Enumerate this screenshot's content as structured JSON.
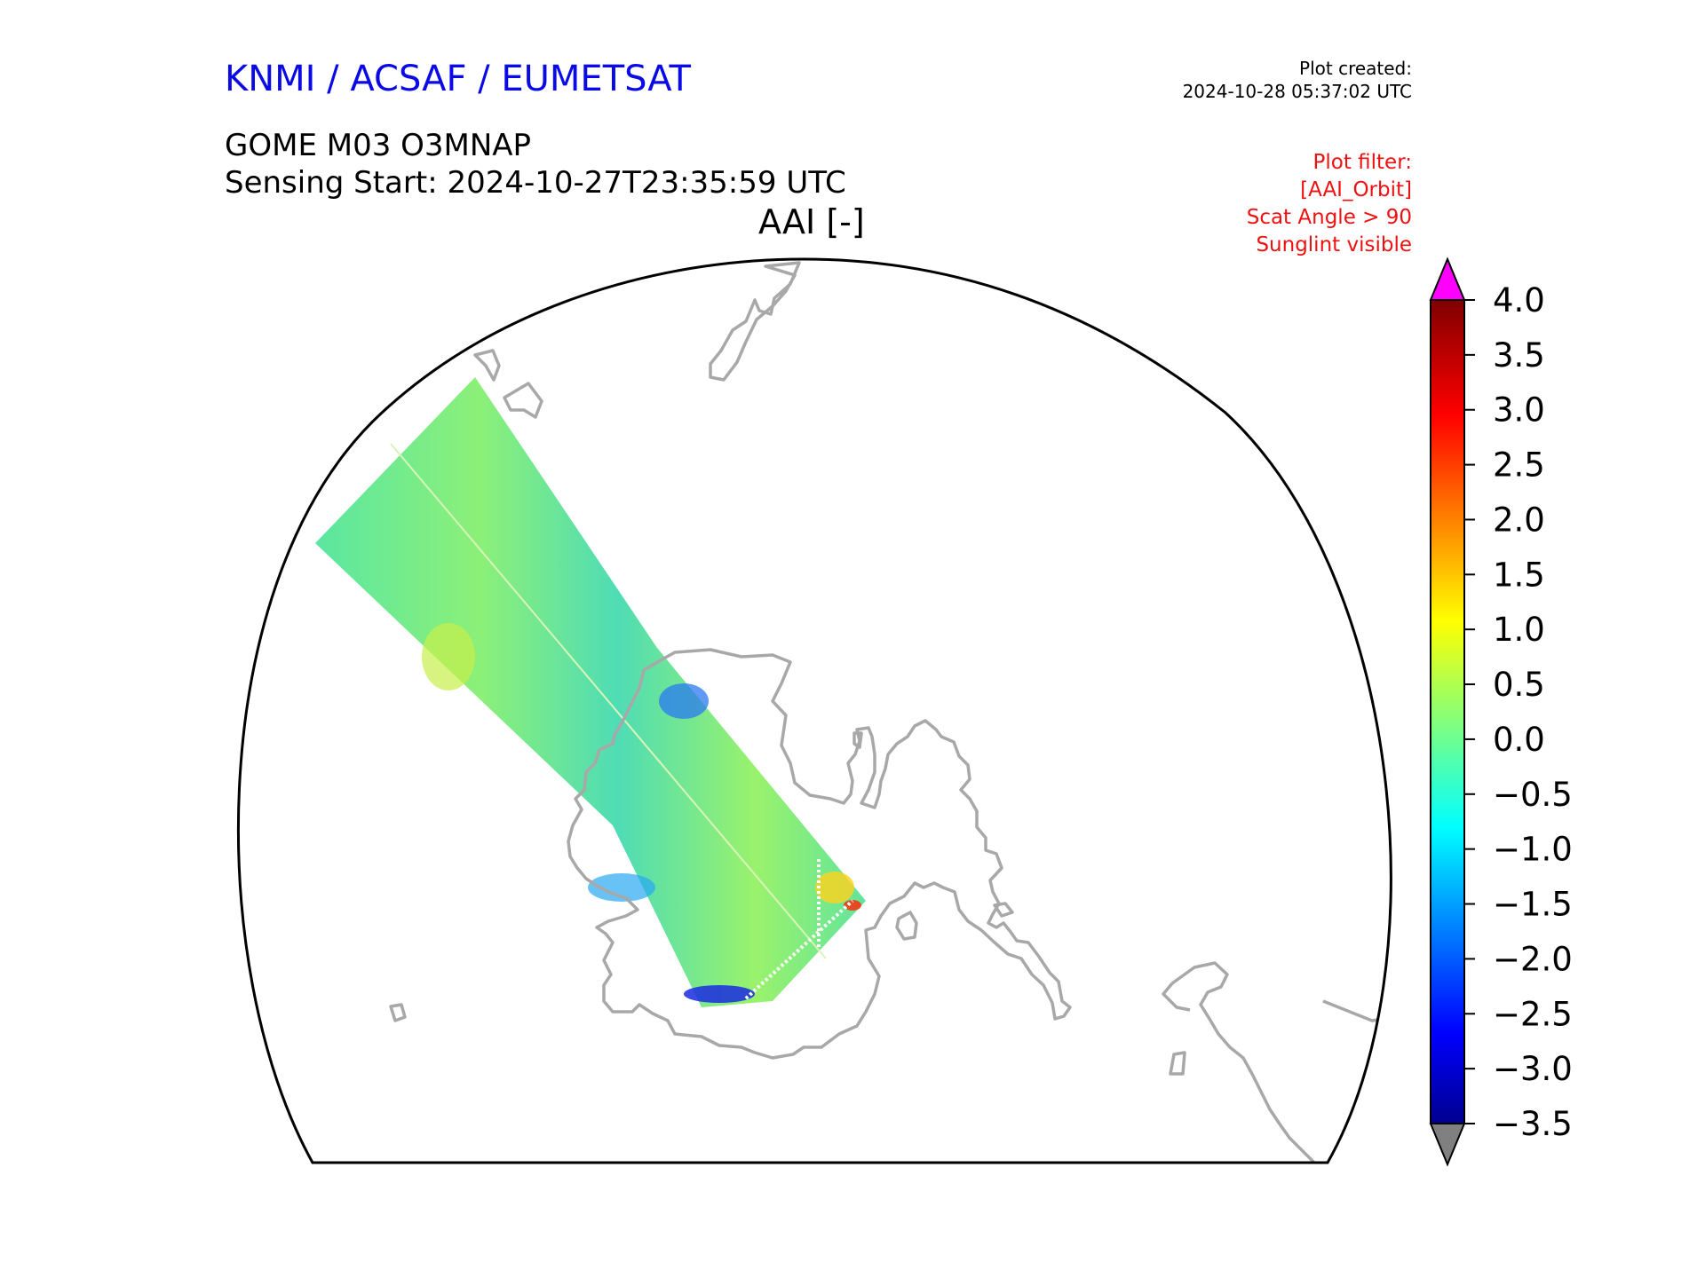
{
  "header": {
    "organization": "KNMI / ACSAF / EUMETSAT",
    "product": "GOME M03 O3MNAP",
    "sensing_start": "Sensing Start: 2024-10-27T23:35:59 UTC",
    "map_title": "AAI [-]",
    "plot_created_label": "Plot created:",
    "plot_created_time": "2024-10-28 05:37:02 UTC"
  },
  "filter": {
    "label": "Plot filter:",
    "lines": [
      "[AAI_Orbit]",
      "Scat Angle > 90",
      "Sunglint visible"
    ]
  },
  "colorbar": {
    "ticks": [
      "4.0",
      "3.5",
      "3.0",
      "2.5",
      "2.0",
      "1.5",
      "1.0",
      "0.5",
      "0.0",
      "−0.5",
      "−1.0",
      "−1.5",
      "−2.0",
      "−2.5",
      "−3.0",
      "−3.5"
    ],
    "min": -3.5,
    "max": 4.0,
    "colormap": "jet",
    "extend_high_color": "#ff00ff",
    "extend_low_color": "#808080"
  },
  "colors": {
    "coastline": "#a8a8a8",
    "frame": "#000000"
  }
}
